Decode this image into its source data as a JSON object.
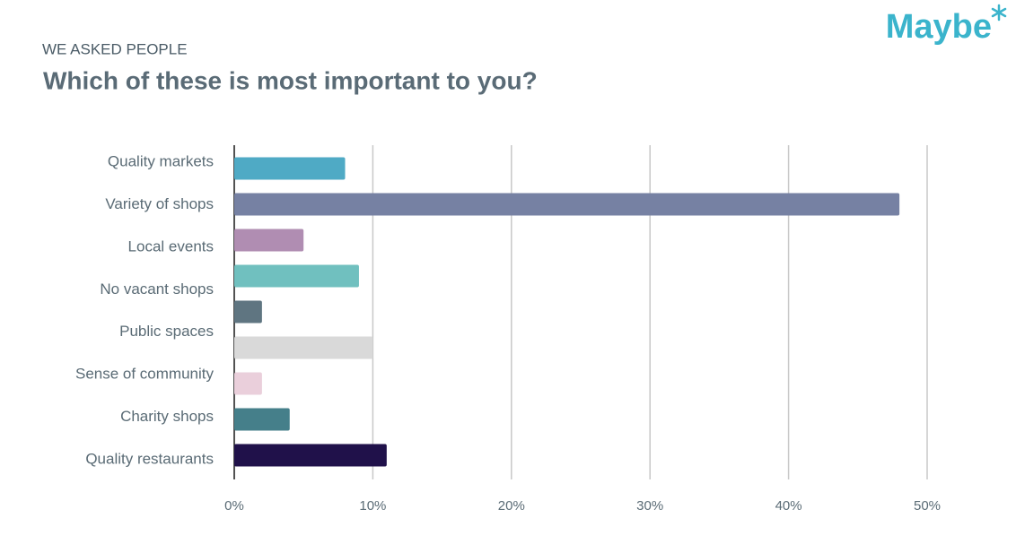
{
  "logo": "Maybe",
  "chart_data": {
    "type": "barh",
    "subtitle": "WE ASKED PEOPLE",
    "title": "Which of these is most important to you?",
    "categories": [
      "Quality markets",
      "Variety of shops",
      "Local events",
      "No vacant shops",
      null,
      "Public spaces",
      "Sense of community",
      "Charity shops",
      "Quality restaurants"
    ],
    "values": [
      8,
      48,
      5,
      9,
      2,
      10,
      2,
      4,
      11
    ],
    "colors": [
      "#4faac5",
      "#7681a3",
      "#b08db2",
      "#70c0bf",
      "#5f7581",
      "#d9d9d9",
      "#eacfdb",
      "#457f8a",
      "#20114a"
    ],
    "xlim": [
      0,
      50
    ],
    "xticks": [
      {
        "value": 0,
        "label": "0%"
      },
      {
        "value": 10,
        "label": "10%"
      },
      {
        "value": 20,
        "label": "20%"
      },
      {
        "value": 30,
        "label": "30%"
      },
      {
        "value": 40,
        "label": "40%"
      },
      {
        "value": 50,
        "label": "50%"
      }
    ],
    "grid": true
  }
}
